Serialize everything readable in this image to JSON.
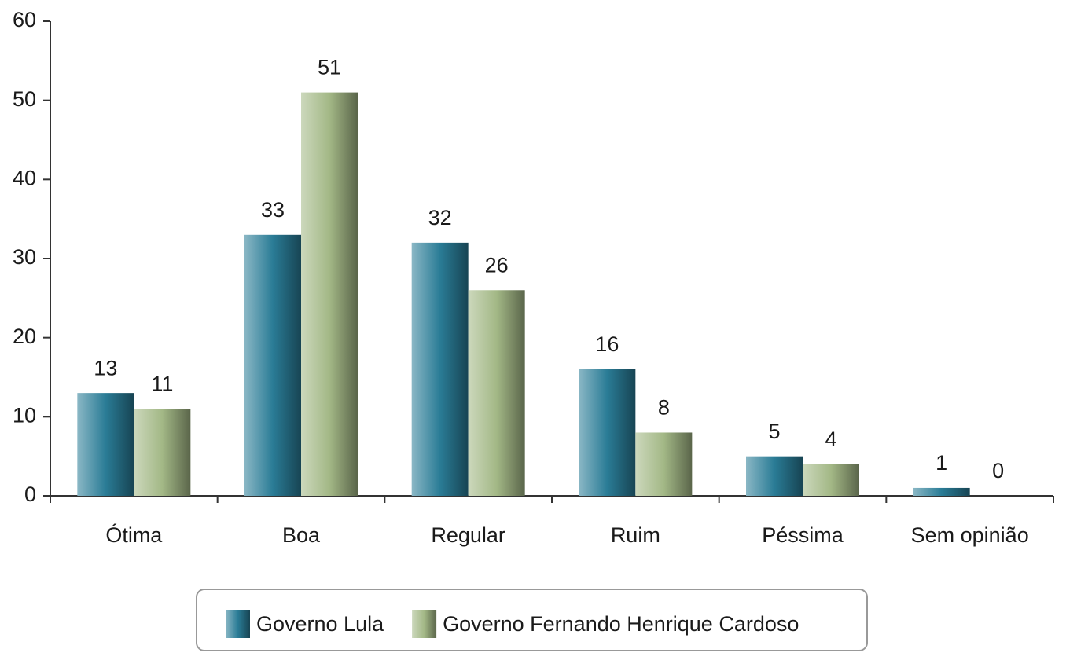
{
  "chart_data": {
    "type": "bar",
    "categories": [
      "Ótima",
      "Boa",
      "Regular",
      "Ruim",
      "Péssima",
      "Sem opinião"
    ],
    "series": [
      {
        "name": "Governo Lula",
        "color": "#2a7c96",
        "values": [
          13,
          33,
          32,
          16,
          5,
          1
        ]
      },
      {
        "name": "Governo Fernando Henrique Cardoso",
        "color": "#a3b886",
        "values": [
          11,
          51,
          26,
          8,
          4,
          0
        ]
      }
    ],
    "ylim": [
      0,
      60
    ],
    "yticks": [
      0,
      10,
      20,
      30,
      40,
      50,
      60
    ],
    "grid": false,
    "legend": "bottom"
  }
}
